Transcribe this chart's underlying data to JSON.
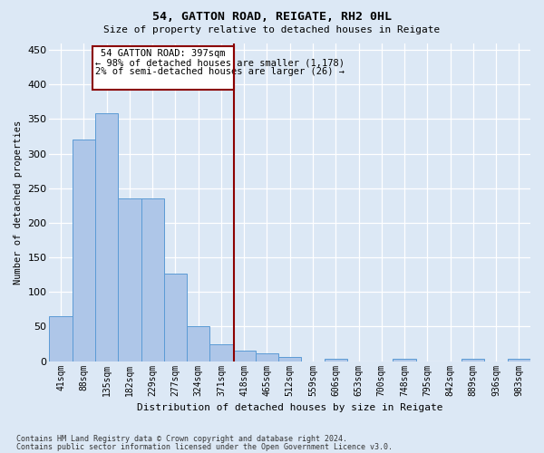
{
  "title1": "54, GATTON ROAD, REIGATE, RH2 0HL",
  "title2": "Size of property relative to detached houses in Reigate",
  "xlabel": "Distribution of detached houses by size in Reigate",
  "ylabel": "Number of detached properties",
  "categories": [
    "41sqm",
    "88sqm",
    "135sqm",
    "182sqm",
    "229sqm",
    "277sqm",
    "324sqm",
    "371sqm",
    "418sqm",
    "465sqm",
    "512sqm",
    "559sqm",
    "606sqm",
    "653sqm",
    "700sqm",
    "748sqm",
    "795sqm",
    "842sqm",
    "889sqm",
    "936sqm",
    "983sqm"
  ],
  "values": [
    65,
    320,
    358,
    235,
    235,
    126,
    50,
    24,
    15,
    11,
    6,
    0,
    4,
    0,
    0,
    3,
    0,
    0,
    3,
    0,
    3
  ],
  "bar_color": "#aec6e8",
  "bar_edge_color": "#5b9bd5",
  "bg_color": "#dce8f5",
  "grid_color": "#ffffff",
  "vline_color": "#8b0000",
  "annotation_box_color": "#8b0000",
  "ylim": [
    0,
    460
  ],
  "yticks": [
    0,
    50,
    100,
    150,
    200,
    250,
    300,
    350,
    400,
    450
  ],
  "footer1": "Contains HM Land Registry data © Crown copyright and database right 2024.",
  "footer2": "Contains public sector information licensed under the Open Government Licence v3.0."
}
